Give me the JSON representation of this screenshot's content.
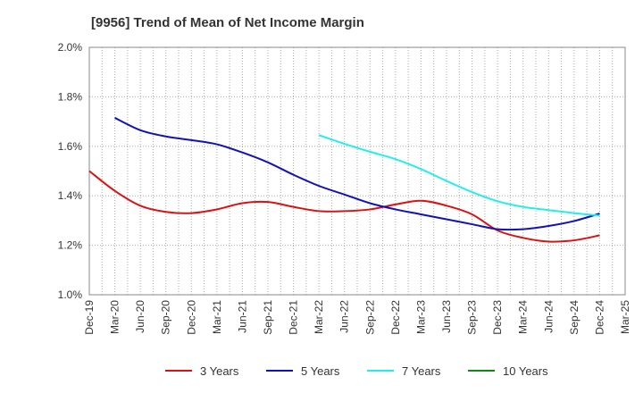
{
  "chart_data": {
    "type": "line",
    "title": "[9956]  Trend of Mean of Net Income Margin",
    "xlabel": "",
    "ylabel": "",
    "x": [
      "Dec-19",
      "Mar-20",
      "Jun-20",
      "Sep-20",
      "Dec-20",
      "Mar-21",
      "Jun-21",
      "Sep-21",
      "Dec-21",
      "Mar-22",
      "Jun-22",
      "Sep-22",
      "Dec-22",
      "Mar-23",
      "Jun-23",
      "Sep-23",
      "Dec-23",
      "Mar-24",
      "Jun-24",
      "Sep-24",
      "Dec-24",
      "Mar-25"
    ],
    "ylim": [
      1.0,
      2.0
    ],
    "yticks": [
      "1.0%",
      "1.2%",
      "1.4%",
      "1.6%",
      "1.8%",
      "2.0%"
    ],
    "ytick_values": [
      1.0,
      1.2,
      1.4,
      1.6,
      1.8,
      2.0
    ],
    "grid": true,
    "legend_position": "bottom",
    "series": [
      {
        "name": "3 Years",
        "color": "#dd1111",
        "values": [
          1.5,
          1.42,
          1.36,
          1.335,
          1.33,
          1.345,
          1.37,
          1.375,
          1.355,
          1.338,
          1.338,
          1.345,
          1.365,
          1.38,
          1.36,
          1.325,
          1.26,
          1.23,
          1.215,
          1.22,
          1.24,
          null
        ]
      },
      {
        "name": "5 Years",
        "color": "#1111bb",
        "values": [
          null,
          1.715,
          1.665,
          1.64,
          1.625,
          1.608,
          1.575,
          1.535,
          1.485,
          1.44,
          1.405,
          1.37,
          1.345,
          1.325,
          1.305,
          1.285,
          1.265,
          1.265,
          1.278,
          1.298,
          1.328,
          null
        ]
      },
      {
        "name": "7 Years",
        "color": "#22eeee",
        "values": [
          null,
          null,
          null,
          null,
          null,
          null,
          null,
          null,
          null,
          1.645,
          1.61,
          1.578,
          1.548,
          1.508,
          1.46,
          1.415,
          1.378,
          1.355,
          1.342,
          1.33,
          1.32,
          null
        ]
      },
      {
        "name": "10 Years",
        "color": "#118811",
        "values": [
          null,
          null,
          null,
          null,
          null,
          null,
          null,
          null,
          null,
          null,
          null,
          null,
          null,
          null,
          null,
          null,
          null,
          null,
          null,
          null,
          null,
          null
        ]
      }
    ]
  }
}
